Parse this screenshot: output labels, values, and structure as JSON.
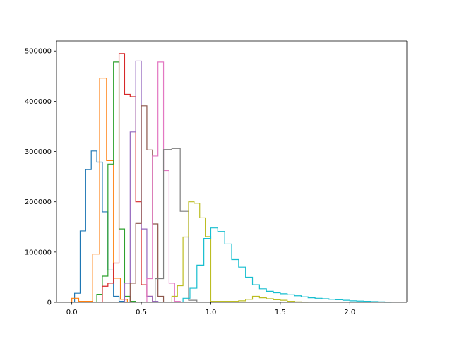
{
  "chart_data": {
    "type": "histogram-step",
    "title": "",
    "xlabel": "",
    "ylabel": "",
    "xlim": [
      -0.11,
      2.41
    ],
    "ylim": [
      0,
      520000
    ],
    "xticks": [
      0.0,
      0.5,
      1.0,
      1.5,
      2.0
    ],
    "xtick_labels": [
      "0.0",
      "0.5",
      "1.0",
      "1.5",
      "2.0"
    ],
    "yticks": [
      0,
      100000,
      200000,
      300000,
      400000,
      500000
    ],
    "ytick_labels": [
      "0",
      "100000",
      "200000",
      "300000",
      "400000",
      "500000"
    ],
    "grid": false,
    "legend": "none",
    "series": [
      {
        "color": "#1f77b4",
        "edges": [
          0.02,
          0.06,
          0.1,
          0.14,
          0.18,
          0.22,
          0.26,
          0.3,
          0.34,
          0.38,
          0.42
        ],
        "values": [
          18000,
          142000,
          264000,
          301000,
          279000,
          180000,
          64000,
          12000,
          2000,
          500
        ]
      },
      {
        "color": "#ff7f0e",
        "edges": [
          0.0,
          0.05,
          0.1,
          0.15,
          0.2,
          0.25,
          0.3,
          0.35,
          0.4
        ],
        "values": [
          8000,
          2000,
          2000,
          96000,
          446000,
          282000,
          48000,
          6000
        ]
      },
      {
        "color": "#2ca02c",
        "edges": [
          0.18,
          0.22,
          0.26,
          0.3,
          0.34,
          0.38,
          0.42,
          0.46
        ],
        "values": [
          16000,
          52000,
          275000,
          478000,
          146000,
          12000,
          2000
        ]
      },
      {
        "color": "#d62728",
        "edges": [
          0.22,
          0.26,
          0.3,
          0.34,
          0.38,
          0.42,
          0.46,
          0.5,
          0.54,
          0.58
        ],
        "values": [
          32000,
          38000,
          78000,
          495000,
          414000,
          409000,
          200000,
          35000,
          12000
        ]
      },
      {
        "color": "#9467bd",
        "edges": [
          0.38,
          0.42,
          0.46,
          0.5,
          0.54,
          0.58,
          0.62
        ],
        "values": [
          38000,
          339000,
          480000,
          146000,
          12000,
          2000
        ]
      },
      {
        "color": "#8c564b",
        "edges": [
          0.42,
          0.46,
          0.5,
          0.54,
          0.58,
          0.62,
          0.66
        ],
        "values": [
          38000,
          157000,
          391000,
          303000,
          156000,
          12000
        ]
      },
      {
        "color": "#e377c2",
        "edges": [
          0.54,
          0.58,
          0.62,
          0.66,
          0.7,
          0.74,
          0.78
        ],
        "values": [
          47000,
          291000,
          478000,
          262000,
          38000,
          2000
        ]
      },
      {
        "color": "#7f7f7f",
        "edges": [
          0.6,
          0.66,
          0.72,
          0.78,
          0.84,
          0.9
        ],
        "values": [
          47000,
          304000,
          306000,
          181000,
          4000
        ]
      },
      {
        "color": "#bcbd22",
        "edges": [
          0.72,
          0.76,
          0.8,
          0.84,
          0.88,
          0.92,
          0.96,
          1.0,
          1.04,
          1.1,
          1.15,
          1.2,
          1.25,
          1.3,
          1.35,
          1.4,
          1.45,
          1.5,
          1.55,
          1.6,
          1.65,
          1.7
        ],
        "values": [
          12000,
          33000,
          130000,
          200000,
          197000,
          168000,
          131000,
          2000,
          2000,
          2000,
          2000,
          3000,
          6000,
          12000,
          9000,
          7000,
          5000,
          4000,
          2000,
          1000,
          500
        ]
      },
      {
        "color": "#17becf",
        "edges": [
          0.8,
          0.85,
          0.9,
          0.95,
          1.0,
          1.05,
          1.1,
          1.15,
          1.2,
          1.25,
          1.3,
          1.35,
          1.4,
          1.45,
          1.5,
          1.55,
          1.6,
          1.65,
          1.7,
          1.75,
          1.8,
          1.85,
          1.9,
          1.95,
          2.0,
          2.05,
          2.1,
          2.15,
          2.2,
          2.25,
          2.3
        ],
        "values": [
          8000,
          28000,
          74000,
          127000,
          148000,
          141000,
          116000,
          85000,
          70000,
          50000,
          35000,
          27000,
          22000,
          19000,
          17000,
          15000,
          13000,
          11000,
          9000,
          8000,
          7000,
          6000,
          5000,
          4000,
          3000,
          2500,
          2000,
          1500,
          1000,
          500
        ]
      }
    ]
  }
}
